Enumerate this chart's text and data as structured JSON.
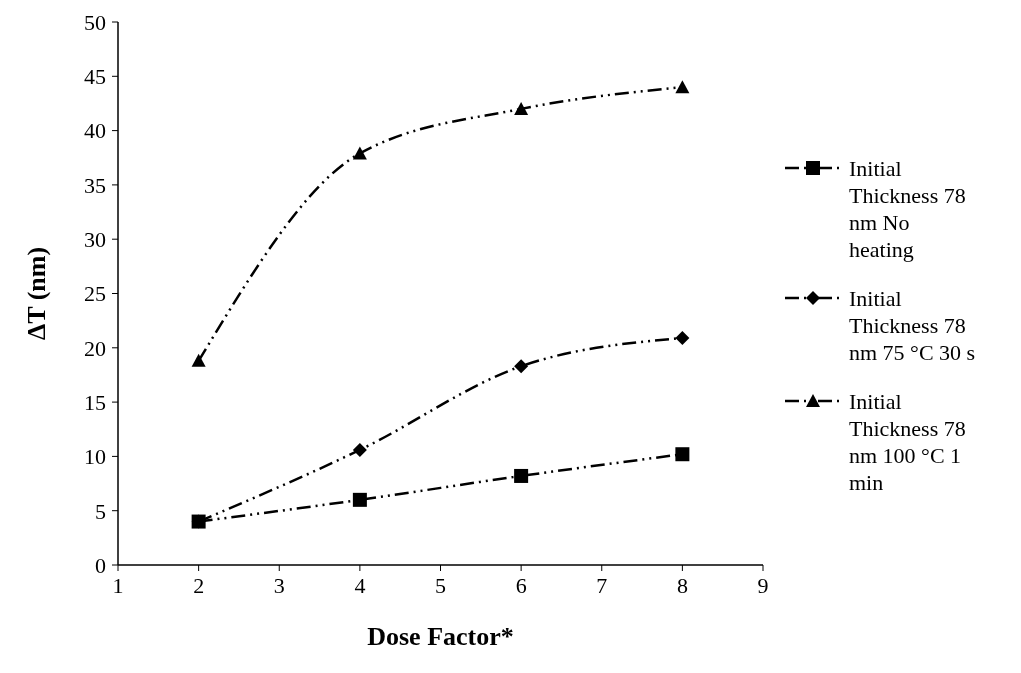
{
  "chart_data": {
    "type": "line",
    "xlabel": "Dose Factor*",
    "ylabel": "ΔT (nm)",
    "x": [
      2,
      4,
      6,
      8
    ],
    "xlim": [
      1,
      9
    ],
    "xticks": [
      1,
      2,
      3,
      4,
      5,
      6,
      7,
      8,
      9
    ],
    "ylim": [
      0,
      50
    ],
    "yticks": [
      0,
      5,
      10,
      15,
      20,
      25,
      30,
      35,
      40,
      45,
      50
    ],
    "legend": "right",
    "line_style": "dashed",
    "series": [
      {
        "name": "Initial Thickness 78 nm No heating",
        "color": "#000000",
        "marker": "square",
        "values": [
          4,
          6,
          8.2,
          10.2
        ]
      },
      {
        "name": "Initial Thickness 78 nm 75 °C 30 s",
        "color": "#000000",
        "marker": "diamond",
        "values": [
          4,
          10.6,
          18.3,
          20.9
        ]
      },
      {
        "name": "Initial Thickness 78 nm 100 °C 1 min",
        "color": "#000000",
        "marker": "triangle",
        "values": [
          18.8,
          37.9,
          42,
          44
        ]
      }
    ]
  }
}
